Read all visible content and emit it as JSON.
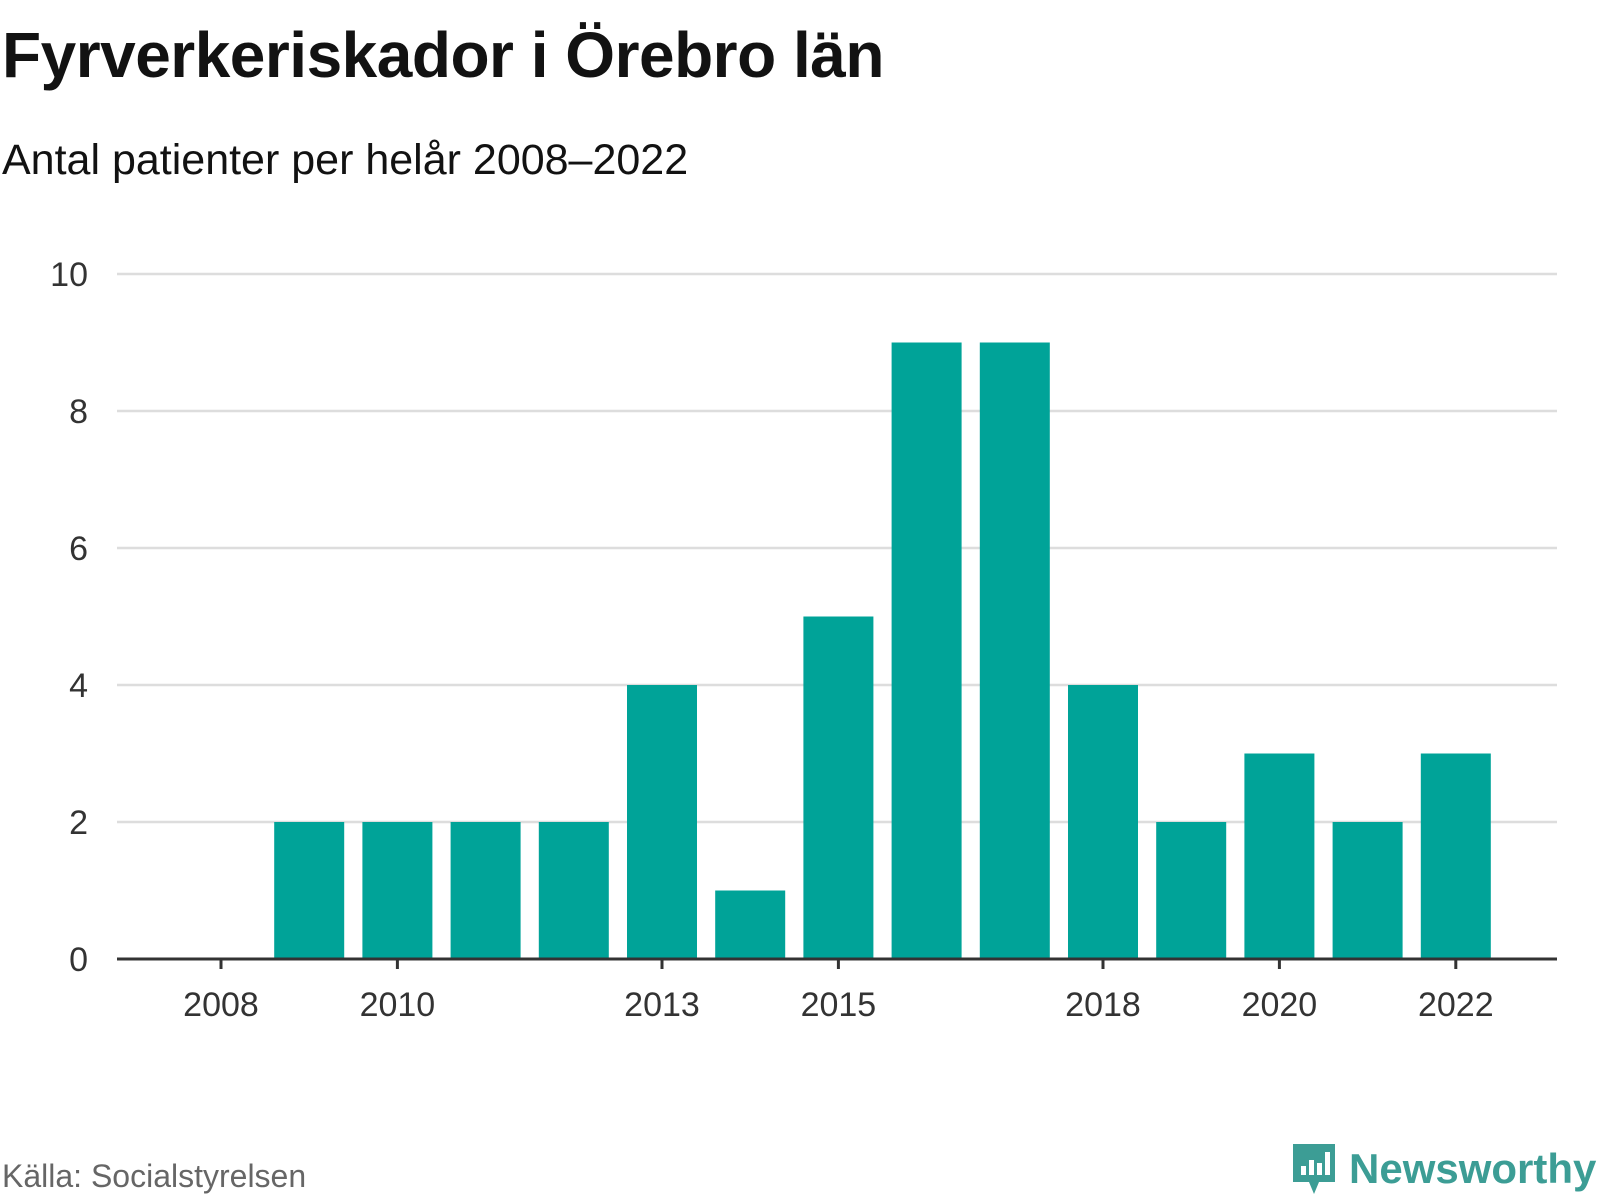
{
  "title": "Fyrverkeriskador i Örebro län",
  "subtitle": "Antal patienter per helår 2008–2022",
  "source": "Källa: Socialstyrelsen",
  "brand": {
    "name": "Newsworthy",
    "color": "#3c9d95",
    "icon": "newsworthy-logo-icon"
  },
  "chart_data": {
    "type": "bar",
    "categories": [
      "2008",
      "2009",
      "2010",
      "2011",
      "2012",
      "2013",
      "2014",
      "2015",
      "2016",
      "2017",
      "2018",
      "2019",
      "2020",
      "2021",
      "2022"
    ],
    "values": [
      0,
      2,
      2,
      2,
      2,
      4,
      1,
      5,
      9,
      9,
      4,
      2,
      3,
      2,
      3
    ],
    "x_tick_labels": [
      "2008",
      "2010",
      "2013",
      "2015",
      "2018",
      "2020",
      "2022"
    ],
    "y_ticks": [
      0,
      2,
      4,
      6,
      8,
      10
    ],
    "ylim": [
      0,
      10
    ],
    "xlabel": "",
    "ylabel": "",
    "grid": true,
    "bar_color": "#00a398"
  }
}
